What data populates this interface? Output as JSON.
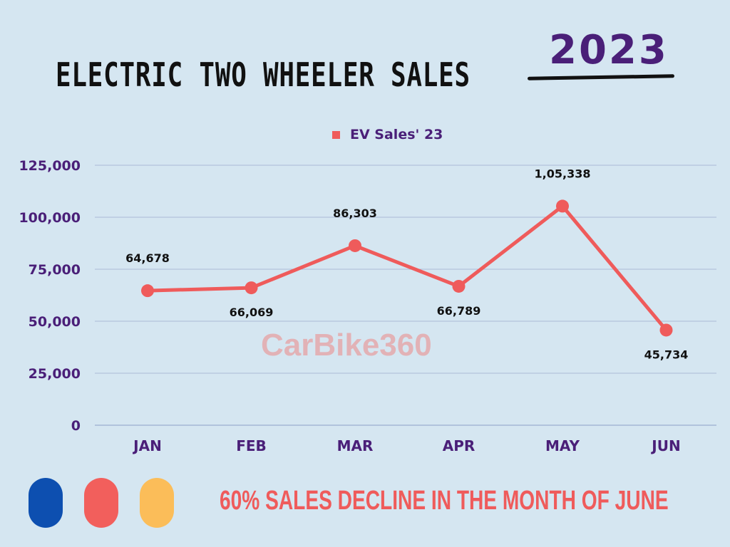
{
  "header": {
    "title": "ELECTRIC TWO WHEELER SALES",
    "year": "2023"
  },
  "watermark": "CarBike360",
  "footer": {
    "text": "60% SALES DECLINE IN THE MONTH OF JUNE"
  },
  "colors": {
    "series": "#ef5b5b",
    "axis_text": "#4a1f78",
    "label_text": "#111111",
    "pill_1": "#0d4fb0",
    "pill_2": "#f25f5c",
    "pill_3": "#fbbd59",
    "footer": "#ef5b5b"
  },
  "chart_data": {
    "type": "line",
    "title": "",
    "xlabel": "",
    "ylabel": "",
    "categories": [
      "JAN",
      "FEB",
      "MAR",
      "APR",
      "MAY",
      "JUN"
    ],
    "series": [
      {
        "name": "EV Sales' 23",
        "values": [
          64678,
          66069,
          86303,
          66789,
          105338,
          45734
        ],
        "data_labels": [
          "64,678",
          "66,069",
          "86,303",
          "66,789",
          "1,05,338",
          "45,734"
        ],
        "label_position": [
          "above",
          "below",
          "above",
          "below",
          "above",
          "below"
        ]
      }
    ],
    "ylim": [
      0,
      125000
    ],
    "yticks": [
      0,
      25000,
      50000,
      75000,
      100000,
      125000
    ],
    "ytick_labels": [
      "0",
      "25,000",
      "50,000",
      "75,000",
      "100,000",
      "125,000"
    ],
    "grid": true,
    "legend": "top-center"
  }
}
